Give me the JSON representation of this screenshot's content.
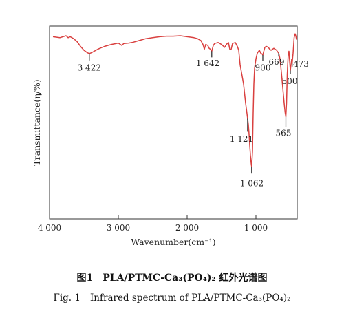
{
  "chart_data": {
    "type": "line",
    "x_axis": {
      "label": "Wavenumber(cm⁻¹)",
      "reversed": true,
      "range": [
        4000,
        400
      ],
      "ticks": [
        4000,
        3000,
        2000,
        1000
      ],
      "tick_labels": [
        "4 000",
        "3 000",
        "2 000",
        "1 000"
      ]
    },
    "y_axis": {
      "label": "Transmittance(η/%)",
      "show_ticks": false
    },
    "series": [
      {
        "color": "#d9403f",
        "points": [
          [
            3950,
            0.945
          ],
          [
            3850,
            0.94
          ],
          [
            3760,
            0.95
          ],
          [
            3730,
            0.94
          ],
          [
            3700,
            0.945
          ],
          [
            3650,
            0.935
          ],
          [
            3600,
            0.92
          ],
          [
            3550,
            0.895
          ],
          [
            3500,
            0.875
          ],
          [
            3450,
            0.862
          ],
          [
            3422,
            0.858
          ],
          [
            3390,
            0.862
          ],
          [
            3350,
            0.87
          ],
          [
            3300,
            0.88
          ],
          [
            3250,
            0.888
          ],
          [
            3200,
            0.895
          ],
          [
            3100,
            0.905
          ],
          [
            3000,
            0.912
          ],
          [
            2950,
            0.9
          ],
          [
            2920,
            0.91
          ],
          [
            2850,
            0.912
          ],
          [
            2800,
            0.915
          ],
          [
            2700,
            0.925
          ],
          [
            2600,
            0.935
          ],
          [
            2500,
            0.94
          ],
          [
            2400,
            0.945
          ],
          [
            2300,
            0.948
          ],
          [
            2200,
            0.948
          ],
          [
            2100,
            0.95
          ],
          [
            2000,
            0.945
          ],
          [
            1900,
            0.94
          ],
          [
            1850,
            0.935
          ],
          [
            1800,
            0.925
          ],
          [
            1770,
            0.905
          ],
          [
            1750,
            0.88
          ],
          [
            1730,
            0.905
          ],
          [
            1700,
            0.9
          ],
          [
            1680,
            0.885
          ],
          [
            1660,
            0.88
          ],
          [
            1642,
            0.87
          ],
          [
            1620,
            0.9
          ],
          [
            1600,
            0.91
          ],
          [
            1550,
            0.915
          ],
          [
            1500,
            0.905
          ],
          [
            1455,
            0.89
          ],
          [
            1430,
            0.905
          ],
          [
            1400,
            0.915
          ],
          [
            1380,
            0.88
          ],
          [
            1360,
            0.88
          ],
          [
            1340,
            0.91
          ],
          [
            1300,
            0.915
          ],
          [
            1270,
            0.895
          ],
          [
            1250,
            0.875
          ],
          [
            1230,
            0.8
          ],
          [
            1200,
            0.74
          ],
          [
            1180,
            0.7
          ],
          [
            1150,
            0.6
          ],
          [
            1135,
            0.56
          ],
          [
            1121,
            0.52
          ],
          [
            1110,
            0.49
          ],
          [
            1100,
            0.44
          ],
          [
            1090,
            0.38
          ],
          [
            1080,
            0.33
          ],
          [
            1070,
            0.29
          ],
          [
            1062,
            0.27
          ],
          [
            1050,
            0.35
          ],
          [
            1040,
            0.55
          ],
          [
            1030,
            0.7
          ],
          [
            1020,
            0.78
          ],
          [
            1000,
            0.83
          ],
          [
            980,
            0.86
          ],
          [
            960,
            0.87
          ],
          [
            950,
            0.875
          ],
          [
            930,
            0.86
          ],
          [
            910,
            0.855
          ],
          [
            900,
            0.85
          ],
          [
            890,
            0.865
          ],
          [
            870,
            0.89
          ],
          [
            850,
            0.895
          ],
          [
            820,
            0.89
          ],
          [
            800,
            0.88
          ],
          [
            780,
            0.875
          ],
          [
            760,
            0.88
          ],
          [
            740,
            0.885
          ],
          [
            720,
            0.88
          ],
          [
            700,
            0.875
          ],
          [
            680,
            0.865
          ],
          [
            669,
            0.86
          ],
          [
            650,
            0.83
          ],
          [
            630,
            0.76
          ],
          [
            610,
            0.68
          ],
          [
            590,
            0.6
          ],
          [
            575,
            0.55
          ],
          [
            565,
            0.53
          ],
          [
            555,
            0.6
          ],
          [
            545,
            0.75
          ],
          [
            530,
            0.86
          ],
          [
            520,
            0.87
          ],
          [
            510,
            0.82
          ],
          [
            500,
            0.77
          ],
          [
            490,
            0.8
          ],
          [
            480,
            0.83
          ],
          [
            473,
            0.81
          ],
          [
            460,
            0.86
          ],
          [
            445,
            0.94
          ],
          [
            430,
            0.96
          ],
          [
            420,
            0.95
          ],
          [
            410,
            0.93
          ]
        ]
      }
    ],
    "annotations": [
      {
        "x": 3422,
        "label": "3 422",
        "tick_from_y": 0.858,
        "tick_to_y": 0.822,
        "label_y": 0.77,
        "label_x": 3422,
        "label_anchor": "middle"
      },
      {
        "x": 1642,
        "label": "1 642",
        "tick_from_y": 0.87,
        "tick_to_y": 0.838,
        "label_y": 0.792,
        "label_x": 1700,
        "label_anchor": "middle"
      },
      {
        "x": 900,
        "label": "900",
        "tick_from_y": 0.85,
        "tick_to_y": 0.82,
        "label_y": 0.77,
        "label_x": 900,
        "label_anchor": "middle"
      },
      {
        "x": 669,
        "label": "669",
        "tick_from_y": 0.86,
        "tick_to_y": 0.842,
        "label_y": 0.8,
        "label_x": 700,
        "label_anchor": "middle"
      },
      {
        "x": 500,
        "label": "500",
        "tick_from_y": 0.77,
        "tick_to_y": 0.75,
        "label_y": 0.7,
        "label_x": 510,
        "label_anchor": "middle"
      },
      {
        "x": 473,
        "label": "473",
        "tick_from_y": 0.81,
        "tick_to_y": 0.79,
        "label_y": 0.79,
        "label_x": 460,
        "label_anchor": "start"
      },
      {
        "x": 565,
        "label": "565",
        "tick_from_y": 0.53,
        "tick_to_y": 0.478,
        "label_y": 0.43,
        "label_x": 600,
        "label_anchor": "middle"
      },
      {
        "x": 1121,
        "label": "1 121",
        "tick_from_y": 0.52,
        "tick_to_y": 0.452,
        "label_y": 0.4,
        "label_x": 1210,
        "label_anchor": "middle"
      },
      {
        "x": 1062,
        "label": "1 062",
        "tick_from_y": 0.27,
        "tick_to_y": 0.235,
        "label_y": 0.17,
        "label_x": 1060,
        "label_anchor": "middle"
      }
    ]
  },
  "caption": {
    "cn_prefix": "图1",
    "cn_text": "PLA/PTMC-Ca₃(PO₄)₂ 红外光谱图",
    "en_prefix": "Fig. 1",
    "en_text": "Infrared spectrum of PLA/PTMC-Ca₃(PO₄)₂"
  }
}
